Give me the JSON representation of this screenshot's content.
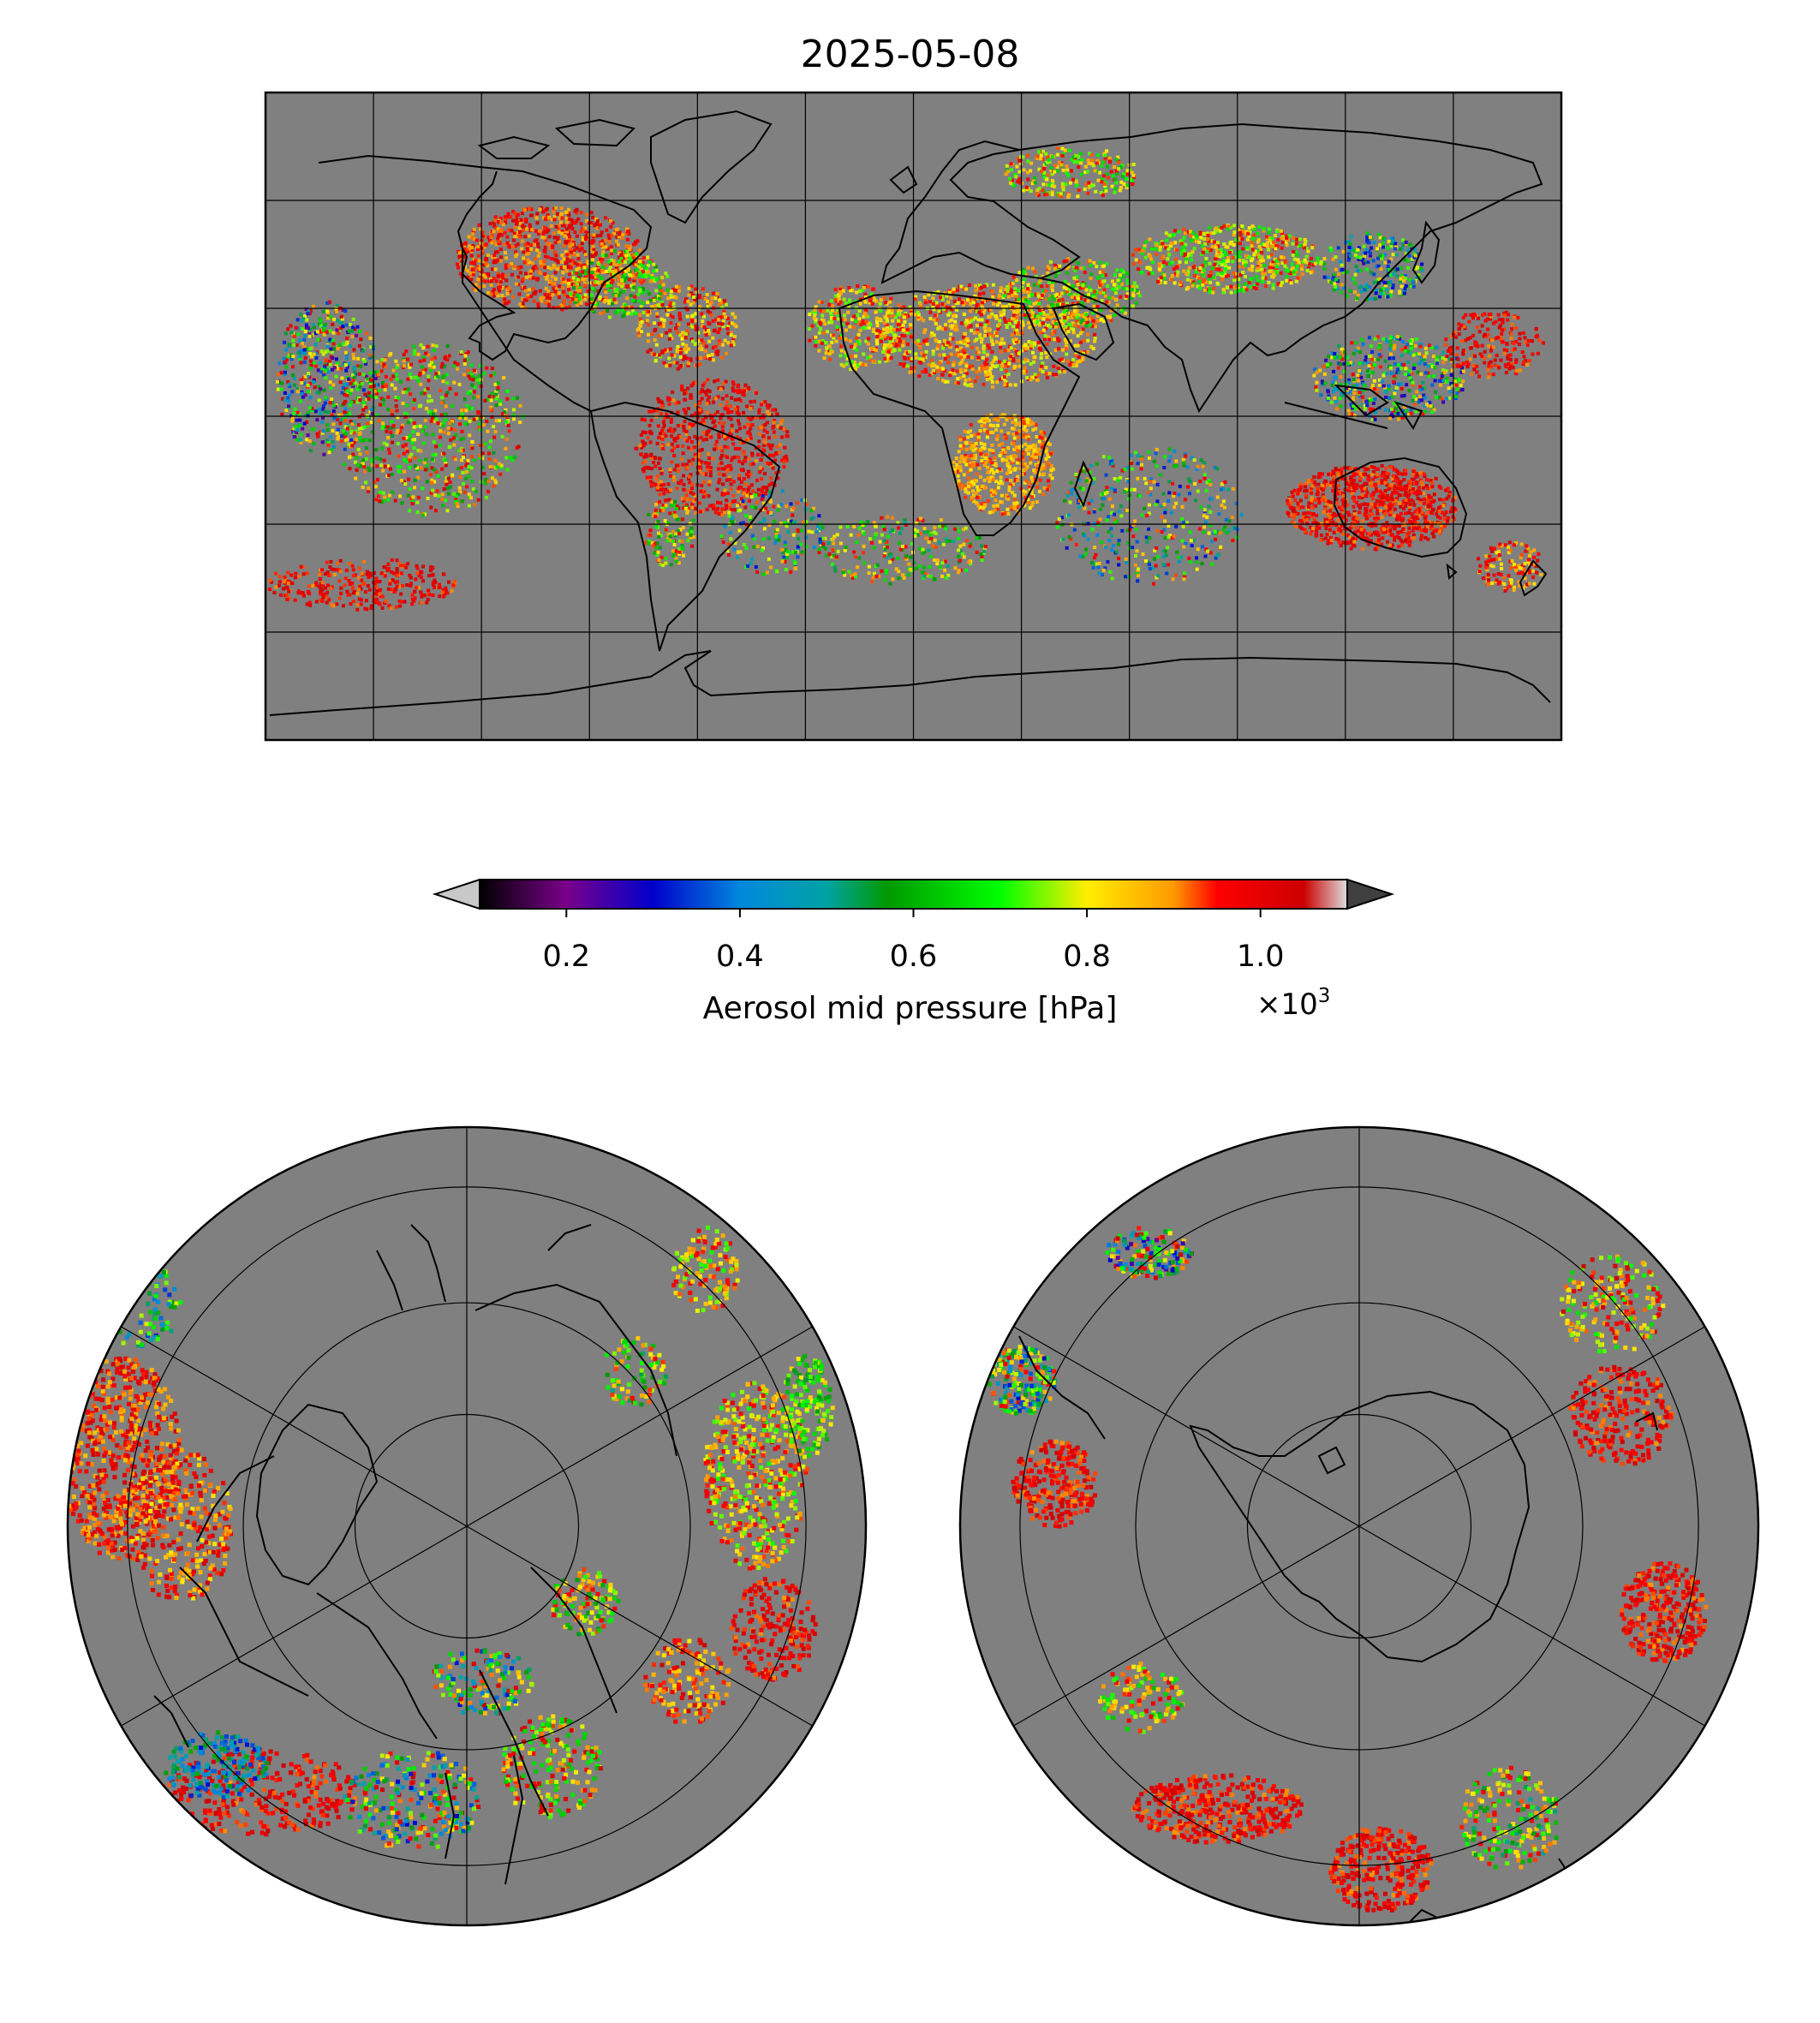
{
  "title": "2025-05-08",
  "colorbar": {
    "label": "Aerosol mid pressure [hPa]",
    "scale_label": "×10",
    "scale_exponent": "3",
    "ticks": [
      "0.2",
      "0.4",
      "0.6",
      "0.8",
      "1.0"
    ],
    "tick_values": [
      0.2,
      0.4,
      0.6,
      0.8,
      1.0
    ],
    "range": [
      0.1,
      1.1
    ],
    "extend": "both",
    "colormap_stops": [
      {
        "v": 0.1,
        "c": "#000000"
      },
      {
        "v": 0.2,
        "c": "#7a008a"
      },
      {
        "v": 0.3,
        "c": "#0000cc"
      },
      {
        "v": 0.4,
        "c": "#0088dd"
      },
      {
        "v": 0.5,
        "c": "#00a3a3"
      },
      {
        "v": 0.57,
        "c": "#009900"
      },
      {
        "v": 0.7,
        "c": "#00ff00"
      },
      {
        "v": 0.8,
        "c": "#ffee00"
      },
      {
        "v": 0.9,
        "c": "#ff9900"
      },
      {
        "v": 0.95,
        "c": "#ff0000"
      },
      {
        "v": 1.05,
        "c": "#cc0000"
      },
      {
        "v": 1.1,
        "c": "#dddddd"
      }
    ],
    "under_color": "#c8c8c8",
    "over_color": "#404040"
  },
  "map": {
    "background_color": "#808080",
    "panels": [
      "global-plate-carree",
      "north-polar-stereographic",
      "south-polar-stereographic"
    ],
    "gridlines": true
  }
}
